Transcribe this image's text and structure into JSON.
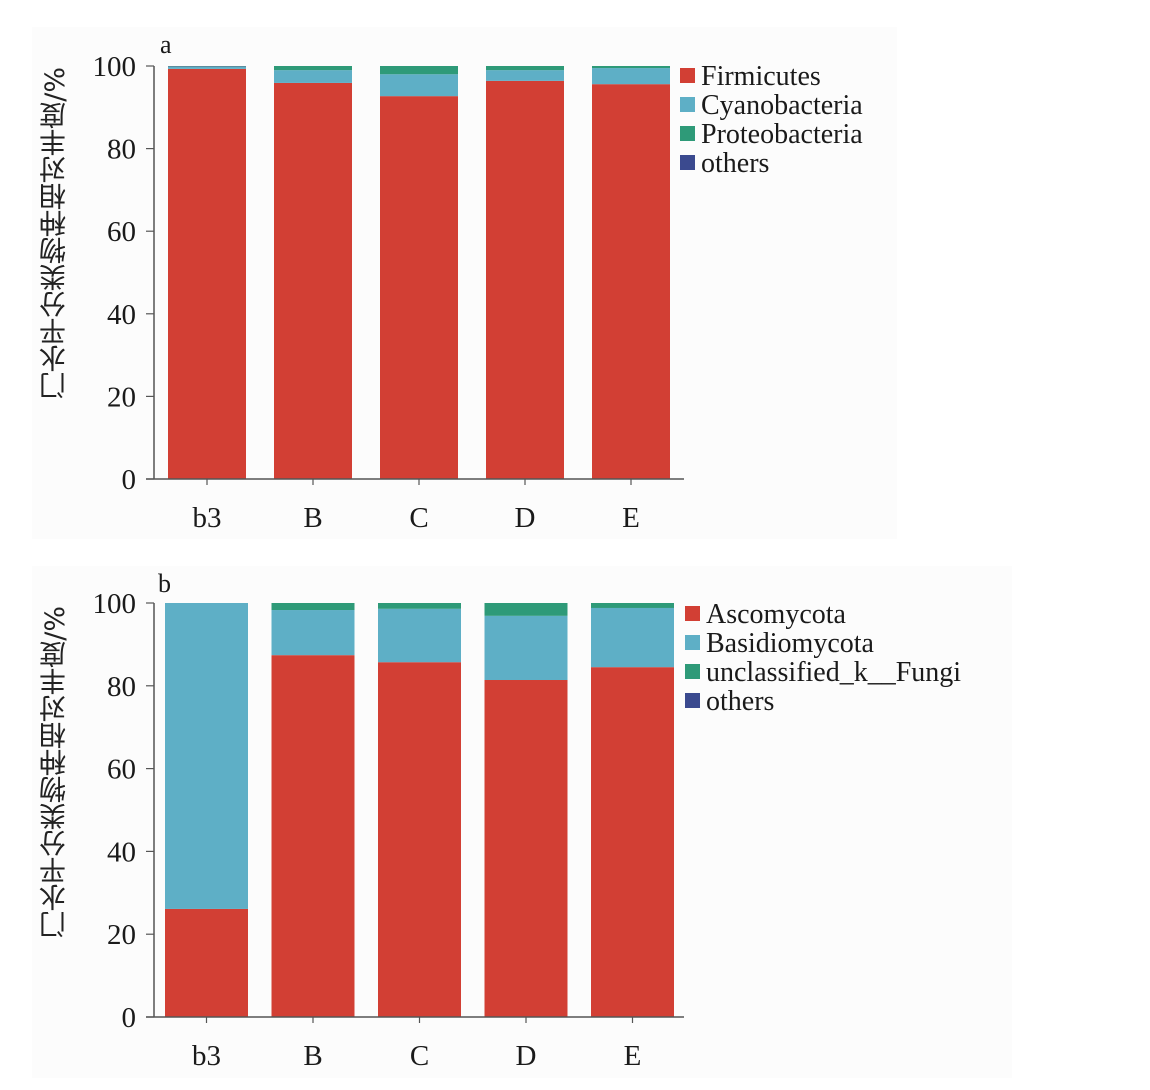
{
  "colors": {
    "red": "#d23f34",
    "cyan": "#5eafc6",
    "green": "#2e9a78",
    "navy": "#3b4a8f",
    "axis": "#555555"
  },
  "chart_data": [
    {
      "type": "bar",
      "stacked": true,
      "panel_label": "a",
      "title": "",
      "xlabel": "",
      "ylabel": "门水平分类物种相对丰度/%",
      "ylim": [
        0,
        100
      ],
      "yticks": [
        0,
        20,
        40,
        60,
        80,
        100
      ],
      "categories": [
        "b3",
        "B",
        "C",
        "D",
        "E"
      ],
      "legend_position": "top-right",
      "series": [
        {
          "name": "Firmicutes",
          "color": "#d23f34",
          "values": [
            99.3,
            95.9,
            92.7,
            96.4,
            95.6
          ]
        },
        {
          "name": "Cyanobacteria",
          "color": "#5eafc6",
          "values": [
            0.5,
            3.1,
            5.3,
            2.6,
            3.9
          ]
        },
        {
          "name": "Proteobacteria",
          "color": "#2e9a78",
          "values": [
            0.1,
            1.0,
            2.0,
            1.0,
            0.5
          ]
        },
        {
          "name": "others",
          "color": "#3b4a8f",
          "values": [
            0.1,
            0.0,
            0.0,
            0.0,
            0.0
          ]
        }
      ]
    },
    {
      "type": "bar",
      "stacked": true,
      "panel_label": "b",
      "title": "",
      "xlabel": "",
      "ylabel": "门水平分类物种相对丰度/%",
      "ylim": [
        0,
        100
      ],
      "yticks": [
        0,
        20,
        40,
        60,
        80,
        100
      ],
      "categories": [
        "b3",
        "B",
        "C",
        "D",
        "E"
      ],
      "legend_position": "top-right",
      "series": [
        {
          "name": "Ascomycota",
          "color": "#d23f34",
          "values": [
            26.1,
            87.4,
            85.7,
            81.4,
            84.5
          ]
        },
        {
          "name": "Basidiomycota",
          "color": "#5eafc6",
          "values": [
            73.9,
            10.9,
            12.9,
            15.5,
            14.3
          ]
        },
        {
          "name": "unclassified_k__Fungi",
          "color": "#2e9a78",
          "values": [
            0.0,
            1.7,
            1.4,
            3.1,
            1.2
          ]
        },
        {
          "name": "others",
          "color": "#3b4a8f",
          "values": [
            0.0,
            0.0,
            0.0,
            0.0,
            0.0
          ]
        }
      ]
    }
  ]
}
